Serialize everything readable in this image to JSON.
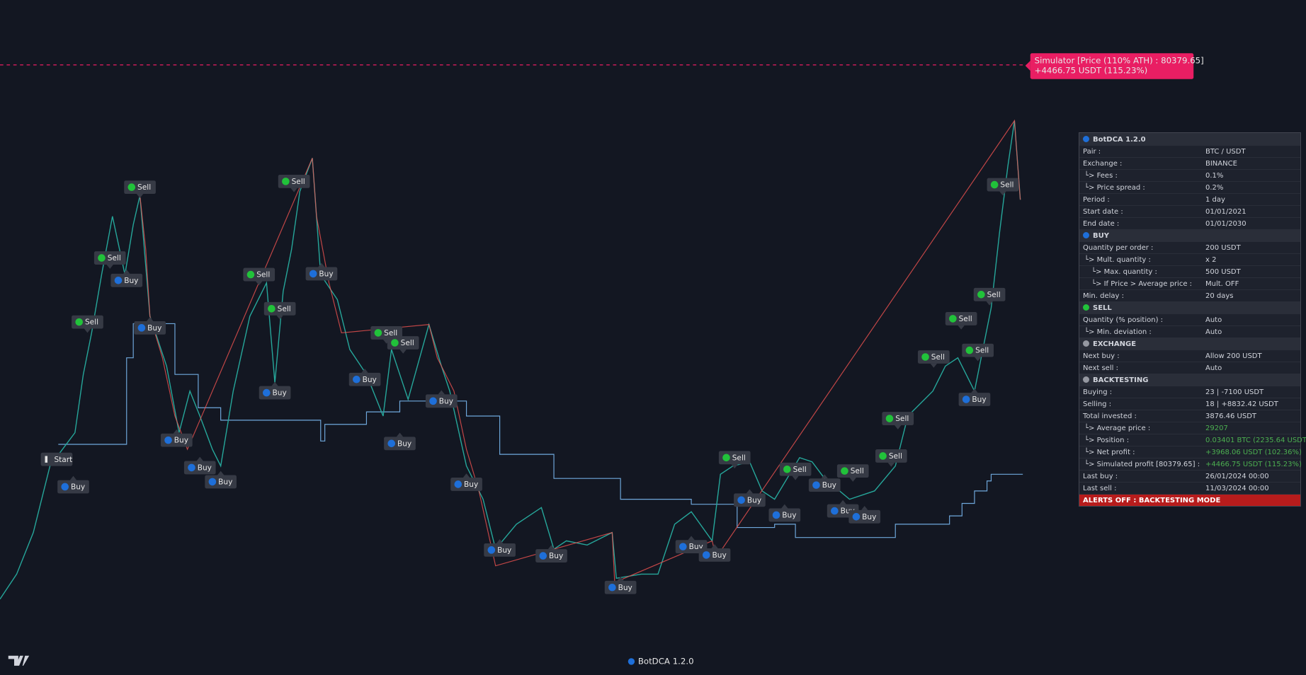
{
  "simulator": {
    "line1": "Simulator [Price (110% ATH) : 80379.65]",
    "line2": "+4466.75 USDT (115.23%)"
  },
  "chart_labels": [
    "Sell",
    "Sell",
    "Sell",
    "Sell",
    "Sell",
    "Sell",
    "Sell",
    "Sell",
    "Sell",
    "Sell",
    "Sell",
    "Sell",
    "Sell",
    "Sell",
    "Sell",
    "Sell",
    "Sell",
    "Sell",
    "Buy",
    "Buy",
    "Buy",
    "Buy",
    "Buy",
    "Buy",
    "Buy",
    "Buy",
    "Buy",
    "Buy",
    "Buy",
    "Buy",
    "Buy",
    "Buy",
    "Buy",
    "Buy",
    "Buy",
    "Buy",
    "Buy",
    "Buy",
    "Buy",
    "Buy",
    "Buy",
    "Start"
  ],
  "footer": "BotDCA 1.2.0",
  "panel": {
    "title": "BotDCA 1.2.0",
    "rows": [
      {
        "label": "Pair :",
        "value": "BTC / USDT"
      },
      {
        "label": "Exchange :",
        "value": "BINANCE"
      },
      {
        "label": "└> Fees :",
        "value": "0.1%"
      },
      {
        "label": "└> Price spread :",
        "value": "0.2%"
      },
      {
        "label": "Period :",
        "value": "1 day"
      },
      {
        "label": "Start date :",
        "value": "01/01/2021"
      },
      {
        "label": "End date :",
        "value": "01/01/2030"
      },
      {
        "section": "BUY"
      },
      {
        "label": "Quantity per order :",
        "value": "200 USDT"
      },
      {
        "label": "└> Mult. quantity :",
        "value": "x 2"
      },
      {
        "label": "└> Max. quantity :",
        "value": "500 USDT"
      },
      {
        "label": "└> If Price > Average price :",
        "value": "Mult. OFF"
      },
      {
        "label": "Min. delay :",
        "value": "20 days"
      },
      {
        "section": "SELL"
      },
      {
        "label": "Quantity (% position) :",
        "value": "Auto"
      },
      {
        "label": "└> Min. deviation :",
        "value": "Auto"
      },
      {
        "section": "EXCHANGE"
      },
      {
        "label": "Next buy :",
        "value": "Allow 200 USDT"
      },
      {
        "label": "Next sell :",
        "value": "Auto"
      },
      {
        "section": "BACKTESTING"
      },
      {
        "label": "Buying :",
        "value": "23 | -7100 USDT"
      },
      {
        "label": "Selling :",
        "value": "18 | +8832.42 USDT"
      },
      {
        "label": "Total invested :",
        "value": "3876.46 USDT"
      },
      {
        "label": "└> Average price :",
        "value": "29207",
        "color": "#4caf50"
      },
      {
        "label": "└> Position :",
        "value": "0.03401 BTC (2235.64 USDT)",
        "color": "#4caf50"
      },
      {
        "label": "└> Net profit :",
        "value": "+3968.06 USDT (102.36%)",
        "color": "#4caf50"
      },
      {
        "label": "└> Simulated profit [80379.65] :",
        "value": "+4466.75 USDT (115.23%)",
        "color": "#4caf50"
      },
      {
        "label": "Last buy :",
        "value": "26/01/2024 00:00"
      },
      {
        "label": "Last sell :",
        "value": "11/03/2024 00:00"
      }
    ],
    "alert": "ALERTS OFF : BACKTESTING MODE"
  }
}
